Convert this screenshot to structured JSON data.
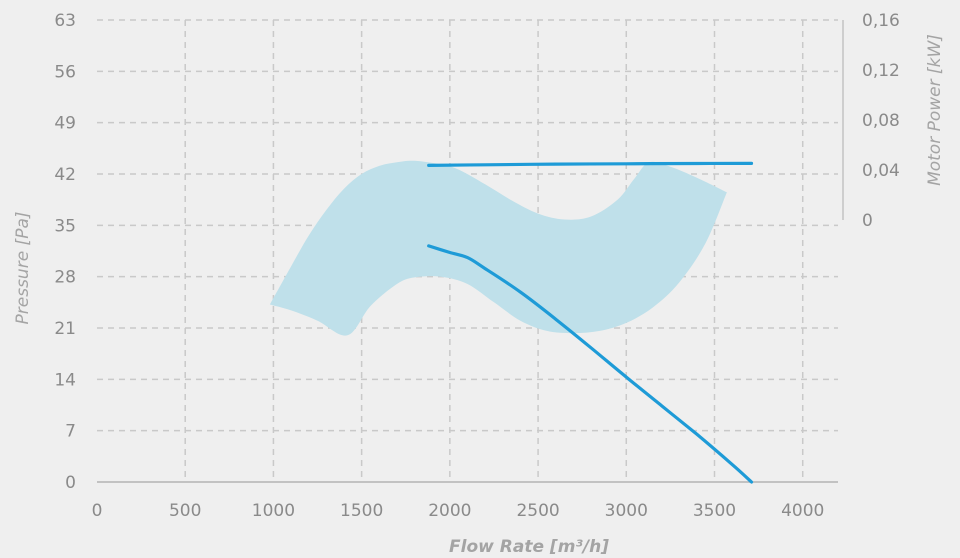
{
  "chart_data": {
    "type": "line",
    "x_axis": {
      "label": "Flow Rate [m³/h]",
      "range": [
        0,
        4200
      ],
      "ticks": [
        "0",
        "500",
        "1000",
        "1500",
        "2000",
        "2500",
        "3000",
        "3500",
        "4000"
      ]
    },
    "y_axis_left": {
      "label": "Pressure [Pa]",
      "range": [
        0,
        63
      ],
      "ticks": [
        "0",
        "7",
        "14",
        "21",
        "28",
        "35",
        "42",
        "49",
        "56",
        "63"
      ]
    },
    "y_axis_right": {
      "label": "Motor Power [kW]",
      "range": [
        0,
        0.16
      ],
      "ticks": [
        "0",
        "0,04",
        "0,08",
        "0,12",
        "0,16"
      ]
    },
    "grid": true,
    "series": [
      {
        "axis": "left",
        "color": "#1e9bd7",
        "points": [
          [
            1880,
            32.2
          ],
          [
            2000,
            31.3
          ],
          [
            2100,
            30.6
          ],
          [
            2200,
            29.1
          ],
          [
            2400,
            25.9
          ],
          [
            2600,
            22.2
          ],
          [
            2800,
            18.3
          ],
          [
            3000,
            14.3
          ],
          [
            3200,
            10.4
          ],
          [
            3400,
            6.5
          ],
          [
            3600,
            2.4
          ],
          [
            3710,
            0
          ]
        ]
      },
      {
        "axis": "right",
        "color": "#1e9bd7",
        "points": [
          [
            1880,
            0.0437
          ],
          [
            2200,
            0.0442
          ],
          [
            2600,
            0.0447
          ],
          [
            3000,
            0.045
          ],
          [
            3400,
            0.0452
          ],
          [
            3710,
            0.0453
          ]
        ]
      }
    ],
    "bands": [
      {
        "axis": "left",
        "color": "#bfe0ea",
        "upper": [
          [
            980,
            24.2
          ],
          [
            1100,
            29.4
          ],
          [
            1200,
            33.6
          ],
          [
            1300,
            37.1
          ],
          [
            1400,
            40.0
          ],
          [
            1500,
            42.0
          ],
          [
            1600,
            43.1
          ],
          [
            1700,
            43.6
          ],
          [
            1800,
            43.8
          ],
          [
            1950,
            43.3
          ],
          [
            2050,
            42.6
          ],
          [
            2200,
            40.6
          ],
          [
            2350,
            38.4
          ],
          [
            2500,
            36.6
          ],
          [
            2650,
            35.8
          ],
          [
            2800,
            36.2
          ],
          [
            2950,
            38.5
          ],
          [
            3050,
            41.5
          ],
          [
            3130,
            43.6
          ],
          [
            3250,
            43.0
          ],
          [
            3400,
            41.5
          ],
          [
            3570,
            39.5
          ]
        ],
        "lower": [
          [
            980,
            24.2
          ],
          [
            1100,
            23.4
          ],
          [
            1250,
            22.0
          ],
          [
            1420,
            20.0
          ],
          [
            1550,
            24.0
          ],
          [
            1700,
            27.0
          ],
          [
            1800,
            27.9
          ],
          [
            1950,
            28.0
          ],
          [
            2100,
            27.0
          ],
          [
            2250,
            24.5
          ],
          [
            2400,
            22.0
          ],
          [
            2550,
            20.6
          ],
          [
            2700,
            20.3
          ],
          [
            2850,
            20.6
          ],
          [
            3000,
            21.7
          ],
          [
            3150,
            23.8
          ],
          [
            3300,
            27.2
          ],
          [
            3450,
            32.6
          ],
          [
            3570,
            39.5
          ]
        ]
      }
    ]
  }
}
